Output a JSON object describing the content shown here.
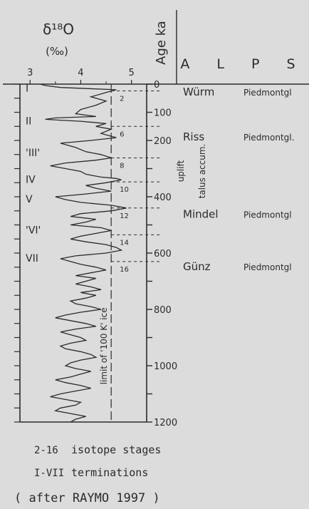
{
  "chart_data": {
    "type": "line",
    "x_axis": {
      "label": "δ¹⁸O",
      "unit": "(‰)",
      "ticks": [
        "3",
        "4",
        "5"
      ],
      "range": [
        2.8,
        5.3
      ],
      "reversed": false
    },
    "y_axis": {
      "label": "Age ka",
      "ticks": [
        "0",
        "100",
        "200",
        "300",
        "400",
        "500",
        "600",
        "700",
        "800",
        "900",
        "1000",
        "1100",
        "1200"
      ],
      "tick_labels_shown": [
        "0",
        "100",
        "200",
        "400",
        "600",
        "800",
        "1000",
        "1200"
      ],
      "range": [
        0,
        1200
      ]
    },
    "series": [
      {
        "age": [
          0,
          5,
          12,
          20,
          30,
          45,
          60,
          75,
          90,
          105,
          115,
          120,
          125,
          128,
          132,
          140,
          150,
          160,
          175,
          190,
          200,
          210,
          225,
          240,
          250,
          262,
          270,
          280,
          290,
          300,
          310,
          320,
          330,
          335,
          340,
          350,
          360,
          370,
          380,
          390,
          400,
          410,
          420,
          430,
          440,
          450,
          460,
          470,
          480,
          490,
          500,
          510,
          520,
          530,
          540,
          550,
          560,
          570,
          580,
          590,
          600,
          610,
          620,
          630,
          640,
          650,
          660,
          670,
          680,
          690,
          700,
          710,
          720,
          730,
          740,
          750,
          760,
          770,
          780,
          790,
          800,
          810,
          820,
          830,
          840,
          850,
          860,
          870,
          880,
          890,
          900,
          910,
          920,
          930,
          940,
          950,
          960,
          970,
          980,
          990,
          1000,
          1010,
          1020,
          1030,
          1040,
          1050,
          1060,
          1070,
          1080,
          1090,
          1100,
          1110,
          1120,
          1130,
          1140,
          1150,
          1160,
          1170,
          1180,
          1190,
          1200
        ],
        "d18o": [
          3.2,
          3.3,
          3.6,
          4.7,
          4.5,
          4.2,
          4.5,
          4.3,
          4.0,
          3.9,
          4.3,
          3.5,
          3.3,
          3.6,
          4.0,
          4.5,
          4.3,
          4.6,
          4.4,
          4.7,
          4.2,
          3.6,
          3.9,
          4.1,
          4.4,
          4.6,
          4.3,
          3.7,
          3.4,
          3.7,
          4.0,
          4.1,
          4.4,
          4.7,
          4.8,
          4.5,
          4.1,
          4.3,
          4.6,
          4.1,
          3.5,
          3.7,
          4.0,
          4.6,
          4.9,
          4.6,
          4.0,
          3.8,
          4.3,
          4.1,
          3.8,
          4.4,
          4.6,
          4.3,
          4.0,
          3.8,
          4.1,
          4.5,
          4.7,
          4.8,
          4.5,
          3.9,
          3.6,
          3.8,
          4.0,
          4.3,
          4.5,
          4.2,
          3.9,
          4.3,
          4.1,
          3.9,
          4.2,
          4.4,
          4.0,
          4.3,
          4.1,
          3.8,
          3.9,
          4.2,
          4.4,
          4.0,
          3.7,
          3.5,
          3.8,
          4.1,
          4.3,
          3.9,
          3.6,
          3.8,
          4.0,
          4.1,
          3.8,
          3.6,
          3.7,
          4.0,
          4.2,
          4.3,
          4.0,
          3.8,
          3.7,
          3.9,
          4.2,
          4.0,
          3.8,
          3.5,
          3.7,
          4.0,
          4.2,
          3.9,
          3.6,
          3.4,
          3.7,
          4.0,
          3.9,
          3.6,
          3.5,
          3.8,
          4.1,
          3.9,
          3.8
        ]
      }
    ],
    "reference_line": {
      "d18o": 4.6,
      "label": "limit of '100 K' ice"
    },
    "terminations": [
      {
        "label": "I",
        "age": 12
      },
      {
        "label": "II",
        "age": 128
      },
      {
        "label": "'III'",
        "age": 240
      },
      {
        "label": "IV",
        "age": 335
      },
      {
        "label": "V",
        "age": 405
      },
      {
        "label": "'VI'",
        "age": 515
      },
      {
        "label": "VII",
        "age": 615
      }
    ],
    "isotope_stages": [
      {
        "label": "2",
        "age": 24
      },
      {
        "label": "6",
        "age": 150
      },
      {
        "label": "8",
        "age": 262
      },
      {
        "label": "10",
        "age": 347
      },
      {
        "label": "12",
        "age": 440
      },
      {
        "label": "14",
        "age": 535
      },
      {
        "label": "16",
        "age": 630
      }
    ],
    "alps_columns": {
      "header": "A L P S",
      "glaciations": [
        {
          "name": "Würm",
          "note": "Piedmontgl",
          "age": 20
        },
        {
          "name": "Riss",
          "note": "Piedmontgl.",
          "age": 180
        },
        {
          "name": "Mindel",
          "note": "Piedmontgl",
          "age": 455
        },
        {
          "name": "Günz",
          "note": "Piedmontgl",
          "age": 640
        }
      ],
      "process_labels": [
        "uplift",
        "talus accum."
      ]
    }
  },
  "legend": {
    "stages_range": "2-16",
    "stages_label": "isotope stages",
    "terminations_range": "I-VII",
    "terminations_label": "terminations"
  },
  "source_note": "( after RAYMO 1997 )",
  "colors": {
    "background": "#dcdcdc",
    "ink": "#2b2b2b"
  }
}
